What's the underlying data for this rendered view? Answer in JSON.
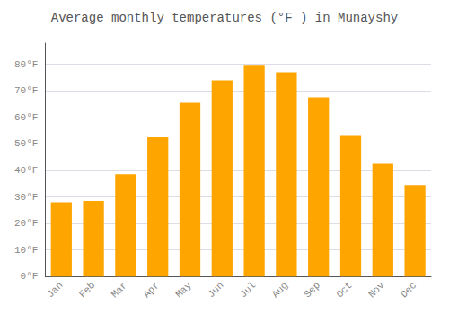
{
  "chart_data": {
    "type": "bar",
    "title": "Average monthly temperatures (°F ) in Munayshy",
    "categories": [
      "Jan",
      "Feb",
      "Mar",
      "Apr",
      "May",
      "Jun",
      "Jul",
      "Aug",
      "Sep",
      "Oct",
      "Nov",
      "Dec"
    ],
    "values": [
      28,
      28.5,
      38.5,
      52.5,
      65.5,
      74,
      79.5,
      77,
      67.5,
      53,
      42.5,
      34.5
    ],
    "color": "#FFA500",
    "ylim": [
      0,
      88
    ],
    "yticks": [
      {
        "value": 0,
        "label": "0°F"
      },
      {
        "value": 10,
        "label": "10°F"
      },
      {
        "value": 20,
        "label": "20°F"
      },
      {
        "value": 30,
        "label": "30°F"
      },
      {
        "value": 40,
        "label": "40°F"
      },
      {
        "value": 50,
        "label": "50°F"
      },
      {
        "value": 60,
        "label": "60°F"
      },
      {
        "value": 70,
        "label": "70°F"
      },
      {
        "value": 80,
        "label": "80°F"
      }
    ],
    "grid": true
  }
}
